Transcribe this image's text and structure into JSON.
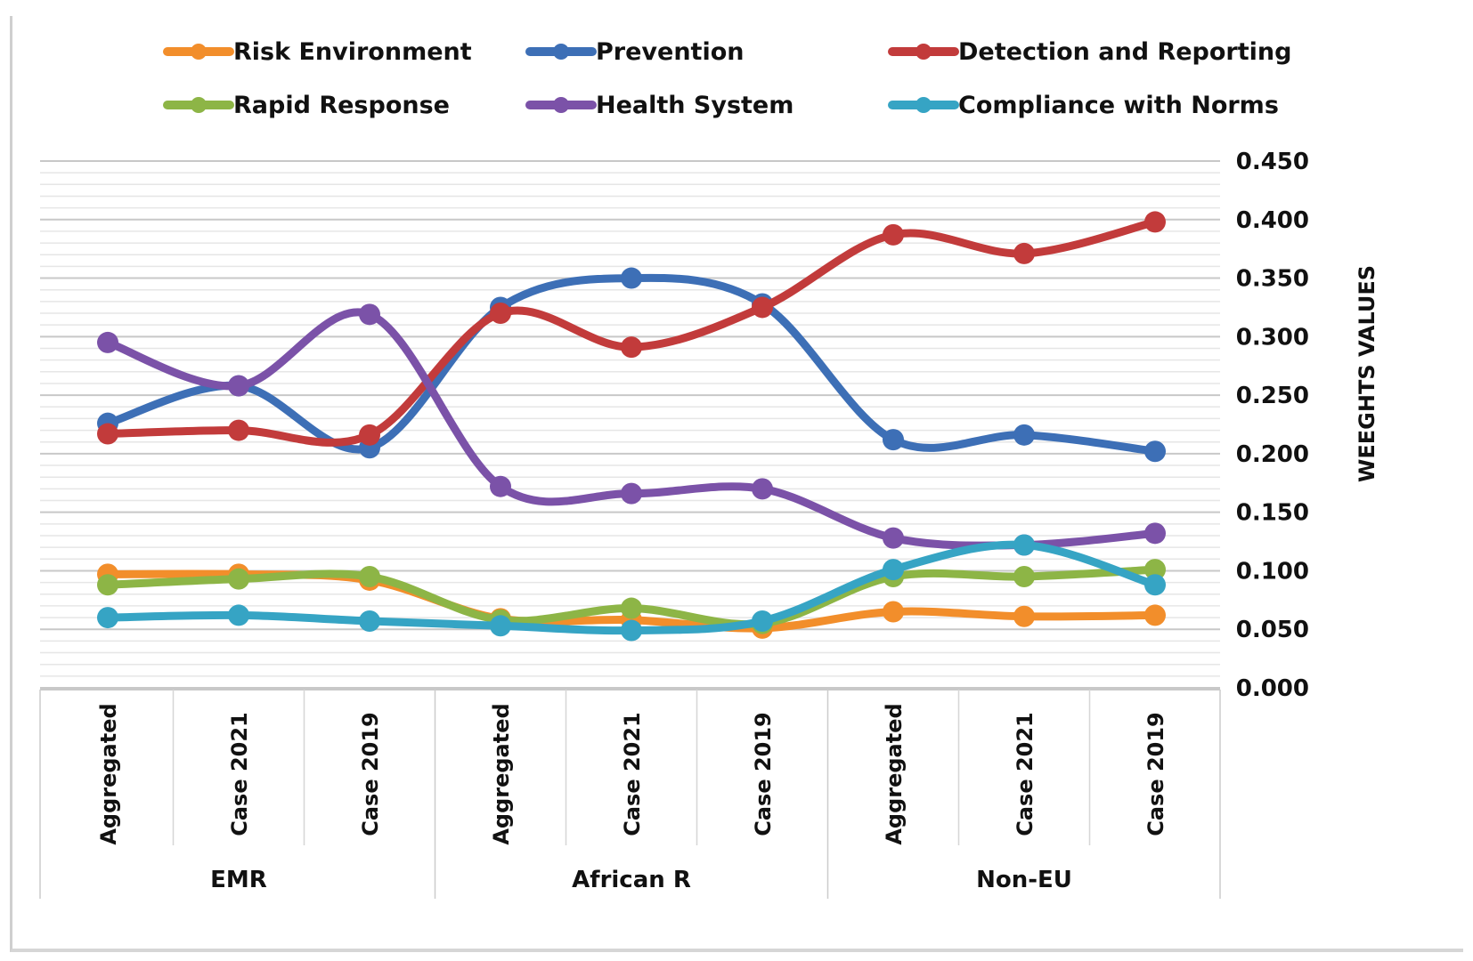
{
  "chart_data": {
    "type": "line",
    "title": "",
    "xlabel": "",
    "ylabel": "WEEGHTS VALUES",
    "ylim": [
      0,
      0.45
    ],
    "y_ticks": [
      "0.000",
      "0.050",
      "0.100",
      "0.150",
      "0.200",
      "0.250",
      "0.300",
      "0.350",
      "0.400",
      "0.450"
    ],
    "y_tick_values": [
      0,
      0.05,
      0.1,
      0.15,
      0.2,
      0.25,
      0.3,
      0.35,
      0.4,
      0.45
    ],
    "y_axis_side": "right",
    "grid": true,
    "legend_position": "top",
    "smooth": true,
    "categories": [
      "Aggregated",
      "Case 2021",
      "Case 2019",
      "Aggregated",
      "Case 2021",
      "Case 2019",
      "Aggregated",
      "Case 2021",
      "Case 2019"
    ],
    "groups": [
      {
        "label": "EMR",
        "span": 3
      },
      {
        "label": "African R",
        "span": 3
      },
      {
        "label": "Non-EU",
        "span": 3
      }
    ],
    "series": [
      {
        "name": "Risk Environment",
        "color": "#f28e2b",
        "values": [
          0.097,
          0.097,
          0.092,
          0.059,
          0.058,
          0.051,
          0.065,
          0.061,
          0.062
        ]
      },
      {
        "name": "Prevention",
        "color": "#3d6fb6",
        "values": [
          0.226,
          0.258,
          0.205,
          0.325,
          0.35,
          0.328,
          0.212,
          0.216,
          0.202
        ]
      },
      {
        "name": "Detection and Reporting",
        "color": "#c23b3b",
        "values": [
          0.217,
          0.22,
          0.216,
          0.32,
          0.291,
          0.325,
          0.387,
          0.371,
          0.398
        ]
      },
      {
        "name": "Rapid Response",
        "color": "#8db546",
        "values": [
          0.088,
          0.093,
          0.095,
          0.058,
          0.068,
          0.055,
          0.095,
          0.095,
          0.101
        ]
      },
      {
        "name": "Health System",
        "color": "#7b52a8",
        "values": [
          0.295,
          0.258,
          0.319,
          0.172,
          0.166,
          0.17,
          0.128,
          0.122,
          0.132
        ]
      },
      {
        "name": "Compliance with Norms",
        "color": "#36a4c4",
        "values": [
          0.06,
          0.062,
          0.057,
          0.053,
          0.049,
          0.057,
          0.101,
          0.122,
          0.088
        ]
      }
    ]
  }
}
